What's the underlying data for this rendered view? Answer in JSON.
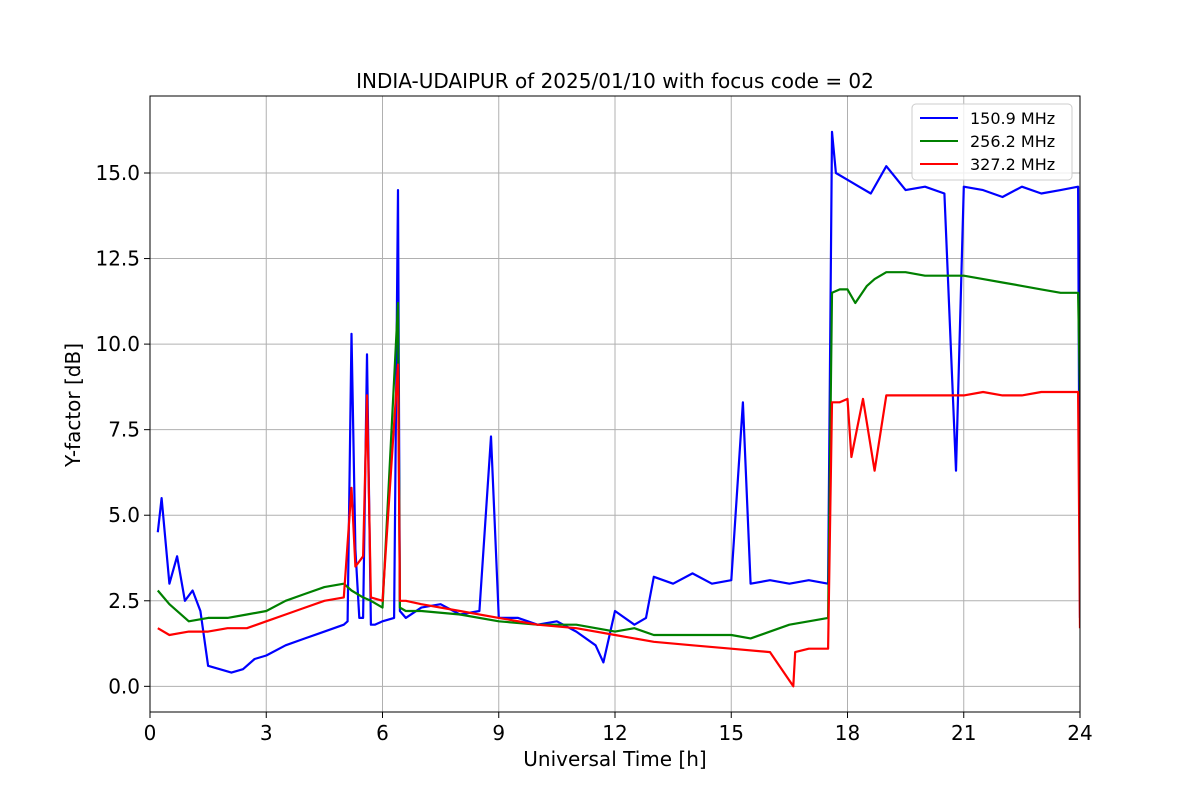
{
  "chart_data": {
    "type": "line",
    "title": "INDIA-UDAIPUR of 2025/01/10 with focus code = 02",
    "xlabel": "Universal Time [h]",
    "ylabel": "Y-factor [dB]",
    "xlim": [
      0,
      24
    ],
    "ylim": [
      -0.75,
      17.25
    ],
    "xticks": [
      0,
      3,
      6,
      9,
      12,
      15,
      18,
      21,
      24
    ],
    "xtick_labels": [
      "0",
      "3",
      "6",
      "9",
      "12",
      "15",
      "18",
      "21",
      "24"
    ],
    "yticks": [
      0.0,
      2.5,
      5.0,
      7.5,
      10.0,
      12.5,
      15.0
    ],
    "ytick_labels": [
      "0.0",
      "2.5",
      "5.0",
      "7.5",
      "10.0",
      "12.5",
      "15.0"
    ],
    "grid": true,
    "legend_position": "top-right",
    "series": [
      {
        "name": "150.9 MHz",
        "color": "#0000ff",
        "x": [
          0.2,
          0.3,
          0.5,
          0.7,
          0.9,
          1.1,
          1.3,
          1.5,
          1.8,
          2.1,
          2.4,
          2.7,
          3.0,
          3.5,
          4.0,
          4.5,
          5.0,
          5.1,
          5.2,
          5.3,
          5.4,
          5.5,
          5.6,
          5.7,
          5.8,
          6.0,
          6.3,
          6.4,
          6.45,
          6.6,
          7.0,
          7.5,
          8.0,
          8.5,
          8.8,
          9.0,
          9.5,
          10.0,
          10.5,
          11.0,
          11.5,
          11.7,
          12.0,
          12.5,
          12.8,
          13.0,
          13.5,
          14.0,
          14.5,
          15.0,
          15.3,
          15.5,
          16.0,
          16.5,
          17.0,
          17.5,
          17.6,
          17.7,
          18.0,
          18.3,
          18.6,
          19.0,
          19.5,
          20.0,
          20.5,
          20.8,
          21.0,
          21.5,
          22.0,
          22.5,
          23.0,
          23.5,
          23.95,
          24.0
        ],
        "y": [
          4.5,
          5.5,
          3.0,
          3.8,
          2.5,
          2.8,
          2.2,
          0.6,
          0.5,
          0.4,
          0.5,
          0.8,
          0.9,
          1.2,
          1.4,
          1.6,
          1.8,
          1.9,
          10.3,
          4.0,
          2.0,
          2.0,
          9.7,
          1.8,
          1.8,
          1.9,
          2.0,
          14.5,
          2.2,
          2.0,
          2.3,
          2.4,
          2.1,
          2.2,
          7.3,
          2.0,
          2.0,
          1.8,
          1.9,
          1.6,
          1.2,
          0.7,
          2.2,
          1.8,
          2.0,
          3.2,
          3.0,
          3.3,
          3.0,
          3.1,
          8.3,
          3.0,
          3.1,
          3.0,
          3.1,
          3.0,
          16.2,
          15.0,
          14.8,
          14.6,
          14.4,
          15.2,
          14.5,
          14.6,
          14.4,
          6.3,
          14.6,
          14.5,
          14.3,
          14.6,
          14.4,
          14.5,
          14.6,
          2.0
        ]
      },
      {
        "name": "256.2 MHz",
        "color": "#008000",
        "x": [
          0.2,
          0.5,
          1.0,
          1.5,
          2.0,
          2.5,
          3.0,
          3.5,
          4.0,
          4.5,
          5.0,
          5.2,
          5.5,
          5.7,
          6.0,
          6.4,
          6.45,
          6.6,
          7.0,
          8.0,
          9.0,
          10.0,
          11.0,
          12.0,
          12.5,
          13.0,
          14.0,
          15.0,
          15.5,
          16.0,
          16.5,
          17.0,
          17.5,
          17.6,
          17.8,
          18.0,
          18.2,
          18.5,
          18.7,
          19.0,
          19.5,
          20.0,
          20.5,
          21.0,
          21.5,
          22.0,
          22.5,
          23.0,
          23.5,
          23.95,
          24.0
        ],
        "y": [
          2.8,
          2.4,
          1.9,
          2.0,
          2.0,
          2.1,
          2.2,
          2.5,
          2.7,
          2.9,
          3.0,
          2.8,
          2.6,
          2.5,
          2.3,
          11.2,
          2.3,
          2.2,
          2.2,
          2.1,
          1.9,
          1.8,
          1.8,
          1.6,
          1.7,
          1.5,
          1.5,
          1.5,
          1.4,
          1.6,
          1.8,
          1.9,
          2.0,
          11.5,
          11.6,
          11.6,
          11.2,
          11.7,
          11.9,
          12.1,
          12.1,
          12.0,
          12.0,
          12.0,
          11.9,
          11.8,
          11.7,
          11.6,
          11.5,
          11.5,
          8.5
        ]
      },
      {
        "name": "327.2 MHz",
        "color": "#ff0000",
        "x": [
          0.2,
          0.5,
          1.0,
          1.5,
          2.0,
          2.5,
          3.0,
          3.5,
          4.0,
          4.5,
          5.0,
          5.2,
          5.3,
          5.5,
          5.6,
          5.7,
          6.0,
          6.4,
          6.45,
          6.6,
          7.0,
          8.0,
          9.0,
          10.0,
          11.0,
          12.0,
          13.0,
          14.0,
          15.0,
          16.0,
          16.6,
          16.65,
          17.0,
          17.5,
          17.6,
          17.8,
          18.0,
          18.1,
          18.4,
          18.7,
          19.0,
          19.5,
          20.0,
          20.5,
          21.0,
          21.5,
          22.0,
          22.5,
          23.0,
          23.5,
          23.95,
          24.0
        ],
        "y": [
          1.7,
          1.5,
          1.6,
          1.6,
          1.7,
          1.7,
          1.9,
          2.1,
          2.3,
          2.5,
          2.6,
          5.8,
          3.5,
          3.8,
          8.5,
          2.6,
          2.5,
          9.4,
          2.5,
          2.5,
          2.4,
          2.2,
          2.0,
          1.8,
          1.7,
          1.5,
          1.3,
          1.2,
          1.1,
          1.0,
          0.0,
          1.0,
          1.1,
          1.1,
          8.3,
          8.3,
          8.4,
          6.7,
          8.4,
          6.3,
          8.5,
          8.5,
          8.5,
          8.5,
          8.5,
          8.6,
          8.5,
          8.5,
          8.6,
          8.6,
          8.6,
          1.7
        ]
      }
    ]
  }
}
